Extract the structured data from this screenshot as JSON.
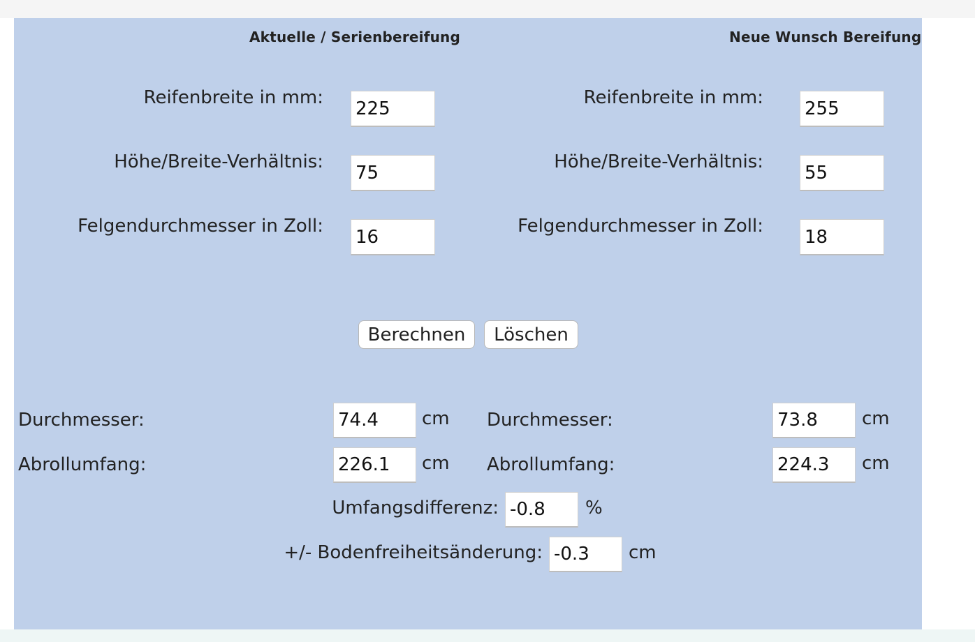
{
  "headers": {
    "current": "Aktuelle / Serienbereifung",
    "new": "Neue Wunsch Bereifung"
  },
  "current": {
    "width_label": "Reifenbreite in mm:",
    "width_value": "225",
    "ratio_label": "Höhe/Breite-Verhältnis:",
    "ratio_value": "75",
    "rim_label": "Felgendurchmesser in Zoll:",
    "rim_value": "16"
  },
  "new": {
    "width_label": "Reifenbreite in mm:",
    "width_value": "255",
    "ratio_label": "Höhe/Breite-Verhältnis:",
    "ratio_value": "55",
    "rim_label": "Felgendurchmesser in Zoll:",
    "rim_value": "18"
  },
  "buttons": {
    "calculate": "Berechnen",
    "clear": "Löschen"
  },
  "results": {
    "current": {
      "diameter_label": "Durchmesser:",
      "diameter_value": "74.4",
      "diameter_unit": "cm",
      "circumference_label": "Abrollumfang:",
      "circumference_value": "226.1",
      "circumference_unit": "cm"
    },
    "new": {
      "diameter_label": "Durchmesser:",
      "diameter_value": "73.8",
      "diameter_unit": "cm",
      "circumference_label": "Abrollumfang:",
      "circumference_value": "224.3",
      "circumference_unit": "cm"
    },
    "difference_label": "Umfangsdifferenz:",
    "difference_value": "-0.8",
    "difference_unit": "%",
    "clearance_label": "+/- Bodenfreiheitsänderung:",
    "clearance_value": "-0.3",
    "clearance_unit": "cm"
  }
}
